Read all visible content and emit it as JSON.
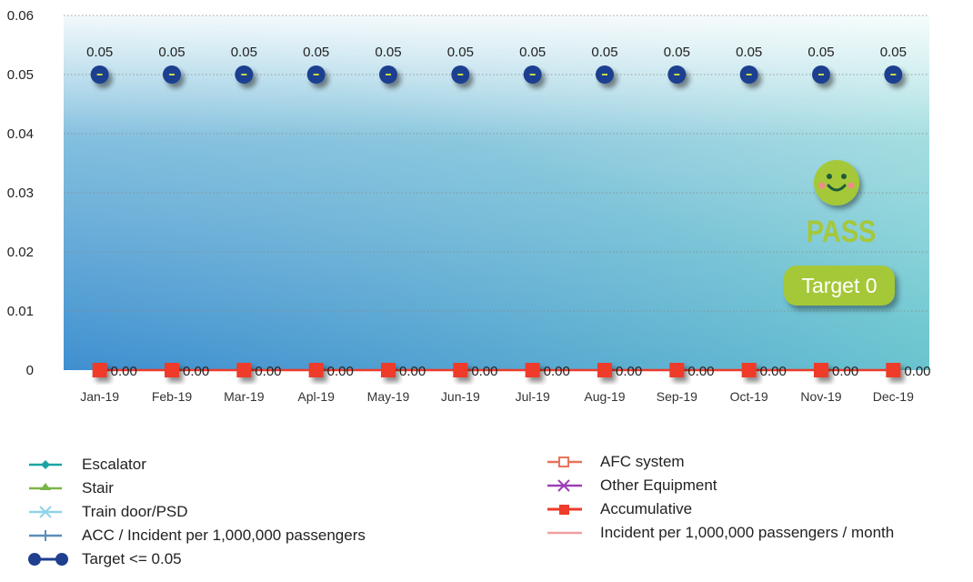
{
  "chart_data": {
    "type": "line",
    "categories": [
      "Jan-19",
      "Feb-19",
      "Mar-19",
      "Apl-19",
      "May-19",
      "Jun-19",
      "Jul-19",
      "Aug-19",
      "Sep-19",
      "Oct-19",
      "Nov-19",
      "Dec-19"
    ],
    "y_ticks": [
      "0",
      "0.01",
      "0.02",
      "0.03",
      "0.04",
      "0.05",
      "0.06"
    ],
    "ylim": [
      0,
      0.06
    ],
    "grid": "horizontal dotted",
    "legend_position": "bottom",
    "series": [
      {
        "name": "Escalator",
        "color": "#1aa3a3",
        "marker": "diamond"
      },
      {
        "name": "Stair",
        "color": "#7ab648",
        "marker": "triangle"
      },
      {
        "name": "Train door/PSD",
        "color": "#8fd3e8",
        "marker": "x"
      },
      {
        "name": "ACC / Incident per 1,000,000 passengers",
        "color": "#5b8db8",
        "marker": "plus"
      },
      {
        "name": "Target <= 0.05",
        "color": "#1f3f8f",
        "marker": "circle",
        "values": [
          0.05,
          0.05,
          0.05,
          0.05,
          0.05,
          0.05,
          0.05,
          0.05,
          0.05,
          0.05,
          0.05,
          0.05
        ],
        "labels": [
          "0.05",
          "0.05",
          "0.05",
          "0.05",
          "0.05",
          "0.05",
          "0.05",
          "0.05",
          "0.05",
          "0.05",
          "0.05",
          "0.05"
        ]
      },
      {
        "name": "AFC system",
        "color": "#e8735a",
        "marker": "square-open"
      },
      {
        "name": "Other Equipment",
        "color": "#9b3fb5",
        "marker": "x"
      },
      {
        "name": "Accumulative",
        "color": "#ee3b2a",
        "marker": "square",
        "values": [
          0,
          0,
          0,
          0,
          0,
          0,
          0,
          0,
          0,
          0,
          0,
          0
        ],
        "labels": [
          "0.00",
          "0.00",
          "0.00",
          "0.00",
          "0.00",
          "0.00",
          "0.00",
          "0.00",
          "0.00",
          "0.00",
          "0.00",
          "0.00"
        ]
      },
      {
        "name": "Incident per 1,000,000 passengers / month",
        "color": "#f0a0a0",
        "marker": "none"
      }
    ]
  },
  "badge": {
    "status": "PASS",
    "target": "Target 0",
    "smiley": "smiley-face-icon",
    "color": "#a5c839"
  },
  "legend_left": [
    {
      "label": "Escalator",
      "icon": "escalator-legend-icon"
    },
    {
      "label": "Stair",
      "icon": "stair-legend-icon"
    },
    {
      "label": "Train door/PSD",
      "icon": "train-door-legend-icon"
    },
    {
      "label": "ACC / Incident per 1,000,000 passengers",
      "icon": "acc-legend-icon"
    },
    {
      "label": "Target <= 0.05",
      "icon": "target-legend-icon"
    }
  ],
  "legend_right": [
    {
      "label": "AFC system",
      "icon": "afc-legend-icon"
    },
    {
      "label": "Other Equipment",
      "icon": "other-equipment-legend-icon"
    },
    {
      "label": "Accumulative",
      "icon": "accumulative-legend-icon"
    },
    {
      "label": "Incident per 1,000,000 passengers / month",
      "icon": "incident-month-legend-icon"
    }
  ]
}
